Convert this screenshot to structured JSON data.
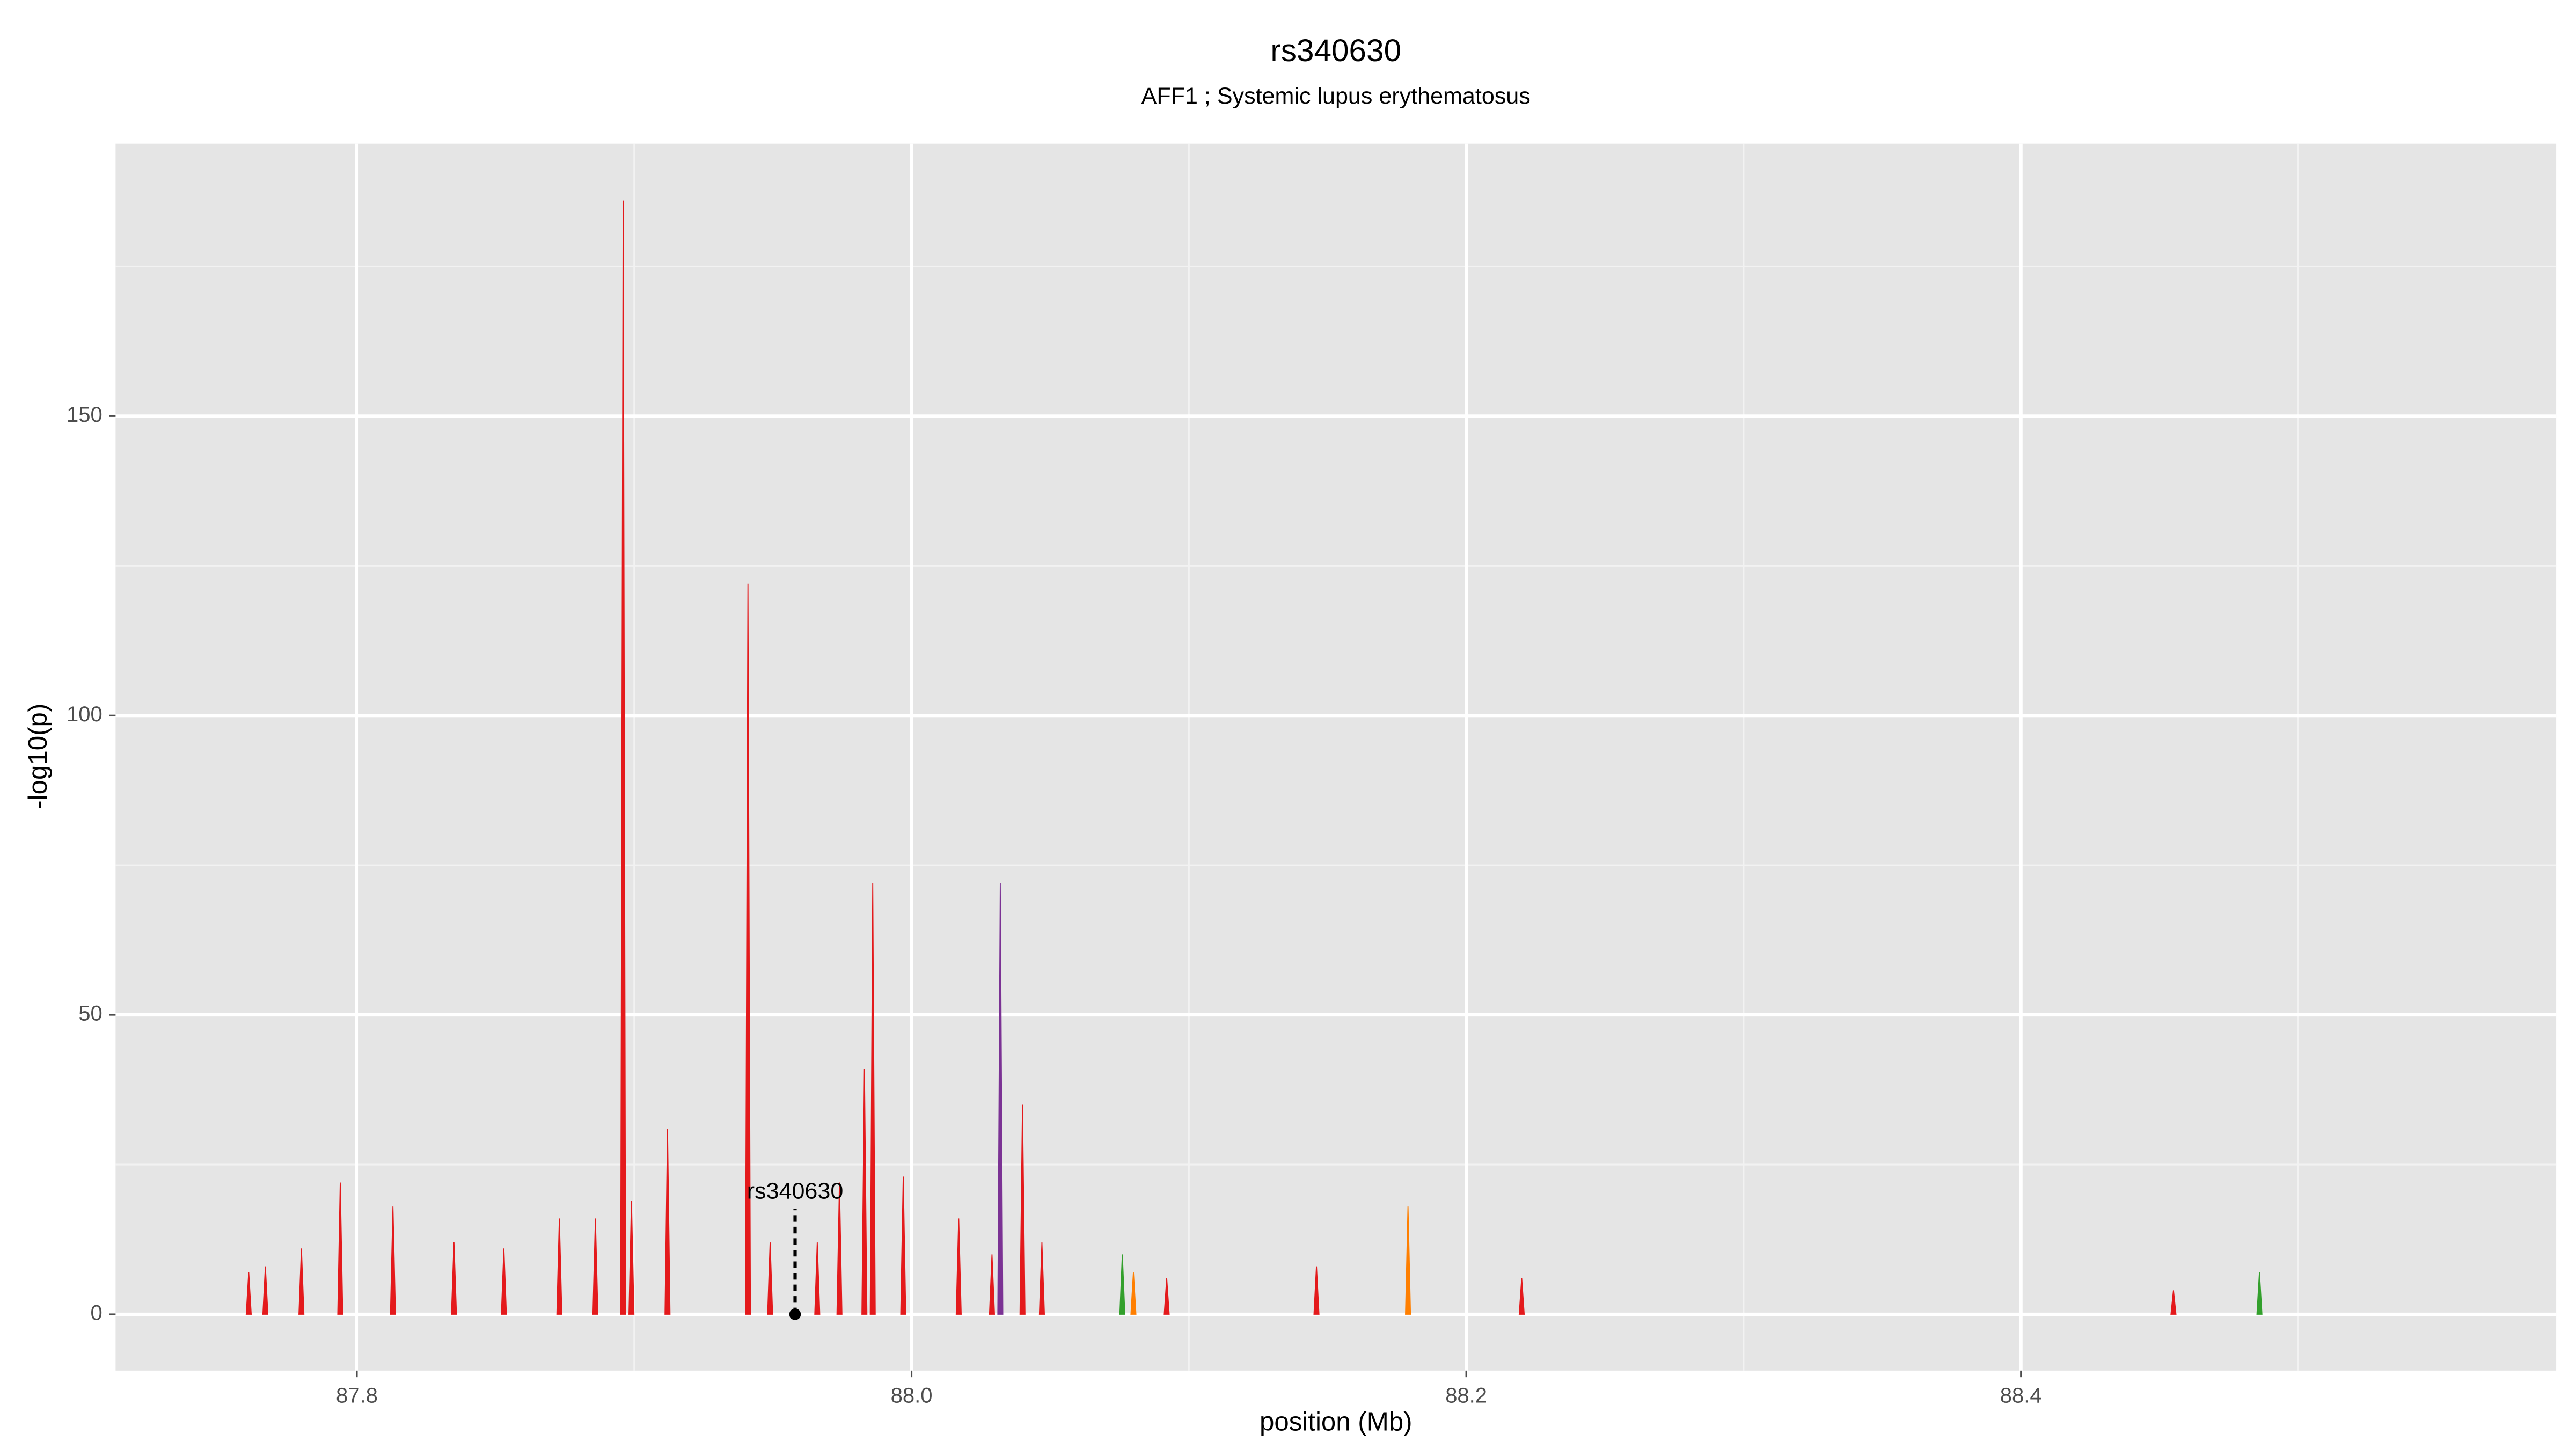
{
  "chart_data": {
    "type": "spike",
    "title": "rs340630",
    "subtitle": "AFF1 ; Systemic lupus erythematosus",
    "x_label": "position (Mb)",
    "y_label": "-log10(p)",
    "xlim": [
      87.713,
      88.593
    ],
    "ylim": [
      -9.4,
      195.5
    ],
    "xticks": [
      87.8,
      {
        "value": 88.0,
        "label": "88.0"
      },
      88.2,
      88.4
    ],
    "yticks": [
      0,
      50,
      100,
      150
    ],
    "x_minor": [
      87.9,
      88.1,
      88.3,
      88.5
    ],
    "y_minor": [
      25,
      75,
      125,
      175
    ],
    "grid": true,
    "series": [
      {
        "name": "red",
        "color": "#e41a1c",
        "x": [
          87.761,
          87.767,
          87.78,
          87.794,
          87.813,
          87.835,
          87.853,
          87.873,
          87.886,
          87.896,
          87.899,
          87.912,
          87.941,
          87.949,
          87.966,
          87.974,
          87.983,
          87.986,
          87.997,
          88.017,
          88.029,
          88.04,
          88.047,
          88.092,
          88.146,
          88.22,
          88.455
        ],
        "values": [
          7,
          8,
          11,
          22,
          18,
          12,
          11,
          16,
          16,
          186,
          19,
          31,
          122,
          12,
          12,
          22,
          41,
          72,
          23,
          16,
          10,
          35,
          12,
          6,
          8,
          6,
          4
        ]
      },
      {
        "name": "purple",
        "color": "#7b3294",
        "x": [
          88.032
        ],
        "values": [
          72
        ]
      },
      {
        "name": "orange",
        "color": "#ff7f00",
        "x": [
          88.08,
          88.179
        ],
        "values": [
          7,
          18
        ]
      },
      {
        "name": "green",
        "color": "#33a02c",
        "x": [
          88.076,
          88.486
        ],
        "values": [
          10,
          7
        ]
      }
    ],
    "annotation": {
      "label": "rs340630",
      "x": 87.958,
      "y": 0,
      "label_y": 22
    }
  }
}
